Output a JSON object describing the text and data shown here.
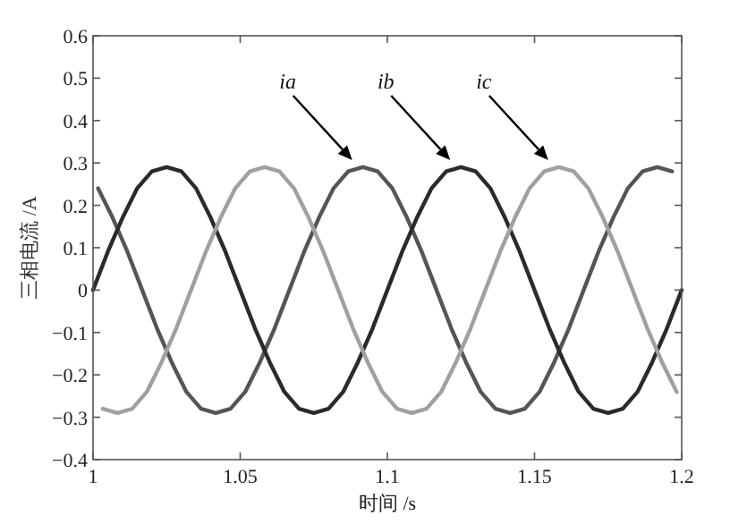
{
  "chart_data": {
    "type": "line",
    "xlabel": "时间 /s",
    "ylabel": "三相电流 /A",
    "xlim": [
      1,
      1.2
    ],
    "xticks": [
      1,
      1.05,
      1.1,
      1.15,
      1.2
    ],
    "ylim": [
      -0.4,
      0.6
    ],
    "yticks": [
      -0.4,
      -0.3,
      -0.2,
      -0.1,
      0,
      0.1,
      0.2,
      0.3,
      0.4,
      0.5,
      0.6
    ],
    "grid": false,
    "marker": "none",
    "line_style": "solid",
    "series": [
      {
        "color": "#555555",
        "x": [
          1.0017,
          1.0067,
          1.0117,
          1.0167,
          1.0217,
          1.0267,
          1.0317,
          1.0367,
          1.0417,
          1.0467,
          1.0517,
          1.0567,
          1.0617,
          1.0667,
          1.0717,
          1.0767,
          1.0817,
          1.0867,
          1.0917,
          1.0967,
          1.1017,
          1.1067,
          1.1117,
          1.1167,
          1.1217,
          1.1267,
          1.1317,
          1.1367,
          1.1417,
          1.1467,
          1.1517,
          1.1567,
          1.1617,
          1.1667,
          1.1717,
          1.1767,
          1.1817,
          1.1867,
          1.1917,
          1.1967
        ],
        "values": [
          0.24,
          0.17,
          0.09,
          0,
          -0.09,
          -0.17,
          -0.24,
          -0.28,
          -0.29,
          -0.28,
          -0.24,
          -0.17,
          -0.09,
          0,
          0.09,
          0.17,
          0.24,
          0.28,
          0.29,
          0.28,
          0.24,
          0.17,
          0.09,
          0,
          -0.09,
          -0.17,
          -0.24,
          -0.28,
          -0.29,
          -0.28,
          -0.24,
          -0.17,
          -0.09,
          0,
          0.09,
          0.17,
          0.24,
          0.28,
          0.29,
          0.28
        ]
      },
      {
        "color": "#2a2a2a",
        "x": [
          1,
          1.005,
          1.01,
          1.015,
          1.02,
          1.025,
          1.03,
          1.035,
          1.04,
          1.045,
          1.05,
          1.055,
          1.06,
          1.065,
          1.07,
          1.075,
          1.08,
          1.085,
          1.09,
          1.095,
          1.1,
          1.105,
          1.11,
          1.115,
          1.12,
          1.125,
          1.13,
          1.135,
          1.14,
          1.145,
          1.15,
          1.155,
          1.16,
          1.165,
          1.17,
          1.175,
          1.18,
          1.185,
          1.19,
          1.195,
          1.2
        ],
        "values": [
          0,
          0.09,
          0.17,
          0.24,
          0.28,
          0.29,
          0.28,
          0.24,
          0.17,
          0.09,
          0,
          -0.09,
          -0.17,
          -0.24,
          -0.28,
          -0.29,
          -0.28,
          -0.24,
          -0.17,
          -0.09,
          0,
          0.09,
          0.17,
          0.24,
          0.28,
          0.29,
          0.28,
          0.24,
          0.17,
          0.09,
          0,
          -0.09,
          -0.17,
          -0.24,
          -0.28,
          -0.29,
          -0.28,
          -0.24,
          -0.17,
          -0.09,
          0
        ]
      },
      {
        "color": "#a0a0a0",
        "x": [
          1.0033,
          1.0083,
          1.0133,
          1.0183,
          1.0233,
          1.0283,
          1.0333,
          1.0383,
          1.0433,
          1.0483,
          1.0533,
          1.0583,
          1.0633,
          1.0683,
          1.0733,
          1.0783,
          1.0833,
          1.0883,
          1.0933,
          1.0983,
          1.1033,
          1.1083,
          1.1133,
          1.1183,
          1.1233,
          1.1283,
          1.1333,
          1.1383,
          1.1433,
          1.1483,
          1.1533,
          1.1583,
          1.1633,
          1.1683,
          1.1733,
          1.1783,
          1.1833,
          1.1883,
          1.1933,
          1.1983
        ],
        "values": [
          -0.28,
          -0.29,
          -0.28,
          -0.24,
          -0.17,
          -0.09,
          0,
          0.09,
          0.17,
          0.24,
          0.28,
          0.29,
          0.28,
          0.24,
          0.17,
          0.09,
          0,
          -0.09,
          -0.17,
          -0.24,
          -0.28,
          -0.29,
          -0.28,
          -0.24,
          -0.17,
          -0.09,
          0,
          0.09,
          0.17,
          0.24,
          0.28,
          0.29,
          0.28,
          0.24,
          0.17,
          0.09,
          0,
          -0.09,
          -0.17,
          -0.24
        ]
      }
    ],
    "annotations": [
      "ia",
      "ib",
      "ic"
    ]
  }
}
